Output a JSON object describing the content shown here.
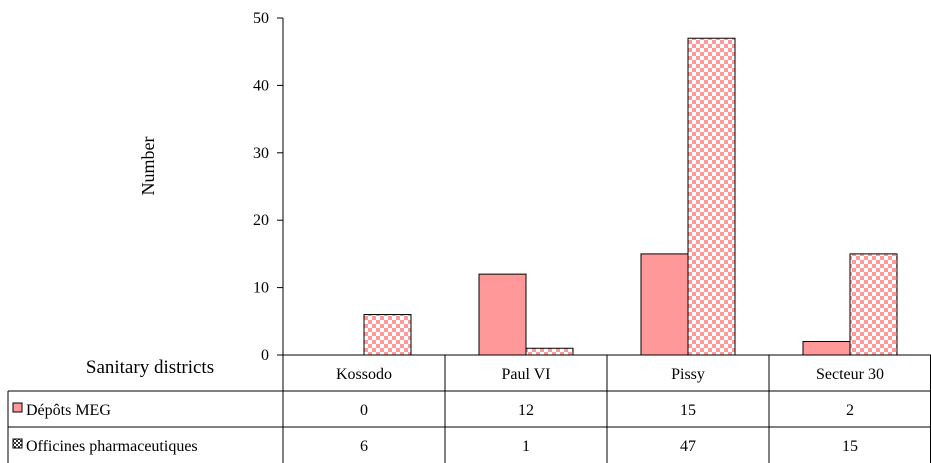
{
  "chart_data": {
    "type": "bar",
    "title": "",
    "ylabel": "Number",
    "xlabel": "Sanitary districts",
    "ylim": [
      0,
      50
    ],
    "yticks": [
      0,
      10,
      20,
      30,
      40,
      50
    ],
    "grid": false,
    "categories": [
      "Kossodo",
      "Paul VI",
      "Pissy",
      "Secteur 30"
    ],
    "series": [
      {
        "name": "Dépôts MEG",
        "values": [
          0,
          12,
          15,
          2
        ],
        "color": "#ff9999",
        "pattern": "solid"
      },
      {
        "name": "Officines pharmaceutiques",
        "values": [
          6,
          1,
          47,
          15
        ],
        "color": "#ff9999",
        "pattern": "checkerboard"
      }
    ],
    "legend_placement": "data-table"
  }
}
